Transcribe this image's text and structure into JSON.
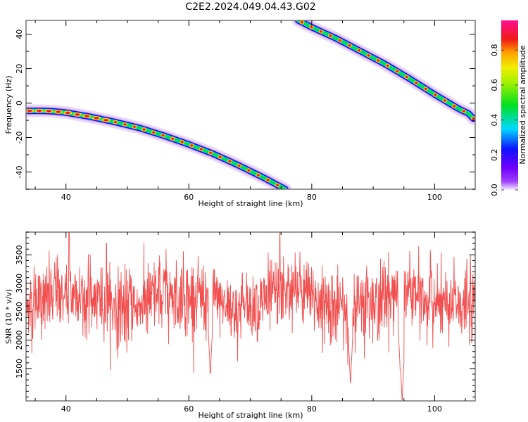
{
  "figure": {
    "title": "C2E2.2024.049.04.43.G02"
  },
  "chart_data": [
    {
      "type": "heatmap",
      "title": "C2E2.2024.049.04.43.G02",
      "xlabel": "Height of straight line (km)",
      "ylabel": "Frequency (Hz)",
      "xlim": [
        33.5,
        106.6
      ],
      "ylim": [
        -50,
        48
      ],
      "xticks": [
        40,
        60,
        80,
        100
      ],
      "yticks": [
        -40,
        -20,
        0,
        20,
        40
      ],
      "colorbar": {
        "label": "Normalized spectral amplitude",
        "range": [
          0,
          0.97
        ],
        "ticks": [
          0.0,
          0.2,
          0.4,
          0.6,
          0.8
        ],
        "colormap": [
          "#f0e0ff",
          "#8a00ff",
          "#1010ff",
          "#00e8ff",
          "#00e020",
          "#f0f000",
          "#ff8000",
          "#f01010",
          "#ff1090"
        ]
      },
      "traces": [
        {
          "name": "lower-trace",
          "points": [
            [
              33.5,
              -4.5
            ],
            [
              36,
              -4.5
            ],
            [
              38,
              -4.8
            ],
            [
              40,
              -5.5
            ],
            [
              44,
              -8
            ],
            [
              48,
              -11
            ],
            [
              52,
              -14.5
            ],
            [
              56,
              -19
            ],
            [
              60,
              -24
            ],
            [
              64,
              -29.5
            ],
            [
              68,
              -36
            ],
            [
              72,
              -43
            ],
            [
              75.7,
              -50
            ]
          ]
        },
        {
          "name": "upper-trace",
          "points": [
            [
              77.8,
              48
            ],
            [
              80,
              44
            ],
            [
              84,
              37.5
            ],
            [
              88,
              30
            ],
            [
              92,
              22.5
            ],
            [
              96,
              14
            ],
            [
              100,
              5
            ],
            [
              104,
              -3.5
            ],
            [
              105.5,
              -6
            ],
            [
              106.3,
              -9
            ]
          ]
        }
      ]
    },
    {
      "type": "line",
      "xlabel": "Height of straight line (km)",
      "ylabel": "SNR (10 * v/v)",
      "xlim": [
        33.5,
        106.6
      ],
      "ylim": [
        930,
        3900
      ],
      "xticks": [
        40,
        60,
        80,
        100
      ],
      "yticks": [
        1500,
        2000,
        2500,
        3000,
        3500
      ],
      "series": [
        {
          "name": "SNR",
          "color": "#f03030",
          "mean": 2700,
          "spread": 330,
          "n_points": 1400,
          "notable_points": [
            [
              40.5,
              3900
            ],
            [
              46.6,
              3700
            ],
            [
              63.5,
              1420
            ],
            [
              74.8,
              3900
            ],
            [
              86.3,
              1250
            ],
            [
              94.7,
              950
            ],
            [
              94.4,
              1480
            ]
          ]
        }
      ]
    }
  ]
}
